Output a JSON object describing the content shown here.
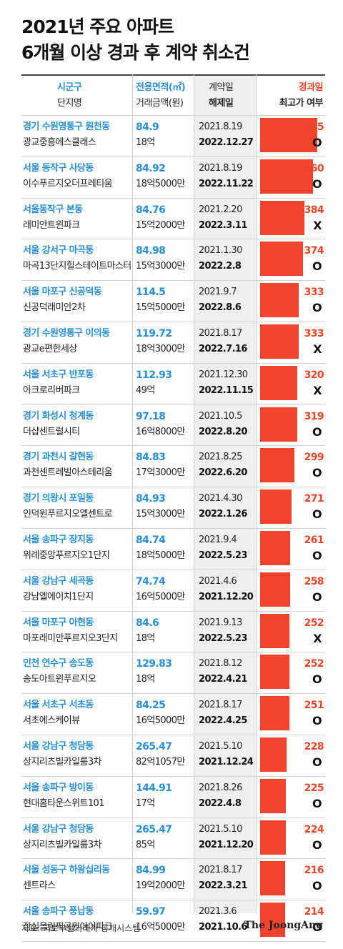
{
  "title": {
    "line1": "2021년 주요 아파트",
    "line2": "6개월 이상 경과 후 계약 취소건"
  },
  "headers": {
    "region": "시군구",
    "apartment": "단지명",
    "area": "전용면적(㎡)",
    "price": "거래금액(원)",
    "contract_date": "계약일",
    "cancel_date": "해제일",
    "days": "경과일",
    "record_high": "최고가 여부"
  },
  "source": "자료: 국토부실거래가 공개시스템",
  "brand": "The JoongAng",
  "colors": {
    "blue": "#2b8fcf",
    "red": "#e8472a",
    "bar": "#f2442d",
    "gray_column": "#efefef"
  },
  "chart_data": {
    "type": "bar",
    "title": "2021년 주요 아파트 6개월 이상 경과 후 계약 취소건",
    "ylim": [
      0,
      520
    ],
    "categories": [
      "원천동",
      "사당동",
      "본동",
      "마곡동",
      "신공덕동",
      "이의동",
      "반포동",
      "청계동",
      "갈현동",
      "포일동",
      "장지동",
      "세곡동",
      "아현동",
      "송도동",
      "서초동",
      "청담동",
      "방이동",
      "청담동",
      "하왕십리동",
      "풍납동"
    ],
    "series": [
      {
        "name": "경과일",
        "values": [
          495,
          460,
          384,
          374,
          333,
          333,
          320,
          319,
          299,
          271,
          261,
          258,
          252,
          252,
          251,
          228,
          225,
          224,
          216,
          214
        ]
      }
    ],
    "rows": [
      {
        "region": "경기 수원영통구 원천동",
        "apartment": "광교중흥에스클래스",
        "area": "84.9",
        "price": "18억",
        "contract": "2021.8.19",
        "cancel": "2022.12.27",
        "days": 495,
        "record_high": "O"
      },
      {
        "region": "서울 동작구 사당동",
        "apartment": "이수푸르지오더프레티움",
        "area": "84.92",
        "price": "18억5000만",
        "contract": "2021.8.19",
        "cancel": "2022.11.22",
        "days": 460,
        "record_high": "O"
      },
      {
        "region": "서울동작구 본동",
        "apartment": "래미안트윈파크",
        "area": "84.76",
        "price": "15억2000만",
        "contract": "2021.2.20",
        "cancel": "2022.3.11",
        "days": 384,
        "record_high": "X"
      },
      {
        "region": "서울 강서구 마곡동",
        "apartment": "마곡13단지힐스테이트마스터",
        "area": "84.98",
        "price": "15억3000만",
        "contract": "2021.1.30",
        "cancel": "2022.2.8",
        "days": 374,
        "record_high": "O"
      },
      {
        "region": "서울 마포구 신공덕동",
        "apartment": "신공덕래미안2차",
        "area": "114.5",
        "price": "15억5000만",
        "contract": "2021.9.7",
        "cancel": "2022.8.6",
        "days": 333,
        "record_high": "O"
      },
      {
        "region": "경기 수원영통구 이의동",
        "apartment": "광교e편한세상",
        "area": "119.72",
        "price": "18억3000만",
        "contract": "2021.8.17",
        "cancel": "2022.7.16",
        "days": 333,
        "record_high": "X"
      },
      {
        "region": "서울 서초구 반포동",
        "apartment": "아크로리버파크",
        "area": "112.93",
        "price": "49억",
        "contract": "2021.12.30",
        "cancel": "2022.11.15",
        "days": 320,
        "record_high": "X"
      },
      {
        "region": "경기 화성시 청계동",
        "apartment": "더샵센트럴시티",
        "area": "97.18",
        "price": "16억8000만",
        "contract": "2021.10.5",
        "cancel": "2022.8.20",
        "days": 319,
        "record_high": "O"
      },
      {
        "region": "경기 과천시 갈현동",
        "apartment": "과천센트레빌아스테리움",
        "area": "84.83",
        "price": "17억3000만",
        "contract": "2021.8.25",
        "cancel": "2022.6.20",
        "days": 299,
        "record_high": "O"
      },
      {
        "region": "경기 의왕시 포일동",
        "apartment": "인덕원푸르지오엘센트로",
        "area": "84.93",
        "price": "15억3000만",
        "contract": "2021.4.30",
        "cancel": "2022.1.26",
        "days": 271,
        "record_high": "O"
      },
      {
        "region": "서울 송파구 장지동",
        "apartment": "위례중앙푸르지오1단지",
        "area": "84.74",
        "price": "18억5000만",
        "contract": "2021.9.4",
        "cancel": "2022.5.23",
        "days": 261,
        "record_high": "O"
      },
      {
        "region": "서울 강남구 세곡동",
        "apartment": "강남엘에이치1단지",
        "area": "74.74",
        "price": "16억5000만",
        "contract": "2021.4.6",
        "cancel": "2021.12.20",
        "days": 258,
        "record_high": "O"
      },
      {
        "region": "서울 마포구 아현동",
        "apartment": "마포래미안푸르지오3단지",
        "area": "84.6",
        "price": "18억",
        "contract": "2021.9.13",
        "cancel": "2022.5.23",
        "days": 252,
        "record_high": "X"
      },
      {
        "region": "인천 연수구 송도동",
        "apartment": "송도아트윈푸르지오",
        "area": "129.83",
        "price": "18억",
        "contract": "2021.8.12",
        "cancel": "2022.4.21",
        "days": 252,
        "record_high": "O"
      },
      {
        "region": "서울 서초구 서초동",
        "apartment": "서초에스케이뷰",
        "area": "84.25",
        "price": "16억5000만",
        "contract": "2021.8.17",
        "cancel": "2022.4.25",
        "days": 251,
        "record_high": "O"
      },
      {
        "region": "서울 강남구 청담동",
        "apartment": "상지리츠빌카일룸3차",
        "area": "265.47",
        "price": "82억1057만",
        "contract": "2021.5.10",
        "cancel": "2021.12.24",
        "days": 228,
        "record_high": "O"
      },
      {
        "region": "서울 송파구 방이동",
        "apartment": "현대홈타운스위트101",
        "area": "144.91",
        "price": "17억",
        "contract": "2021.8.26",
        "cancel": "2022.4.8",
        "days": 225,
        "record_high": "O"
      },
      {
        "region": "서울 강남구 청담동",
        "apartment": "상지리츠빌카일룸3차",
        "area": "265.47",
        "price": "85억",
        "contract": "2021.5.10",
        "cancel": "2021.12.20",
        "days": 224,
        "record_high": "O"
      },
      {
        "region": "서울 성동구 하왕십리동",
        "apartment": "센트라스",
        "area": "84.99",
        "price": "19억2000만",
        "contract": "2021.8.17",
        "cancel": "2022.3.21",
        "days": 216,
        "record_high": "O"
      },
      {
        "region": "서울 송파구 풍납동",
        "apartment": "잠실올림픽공원아이파크",
        "area": "59.97",
        "price": "16억5000만",
        "contract": "2021.3.6",
        "cancel": "2021.10.6",
        "days": 214,
        "record_high": "O"
      }
    ]
  }
}
